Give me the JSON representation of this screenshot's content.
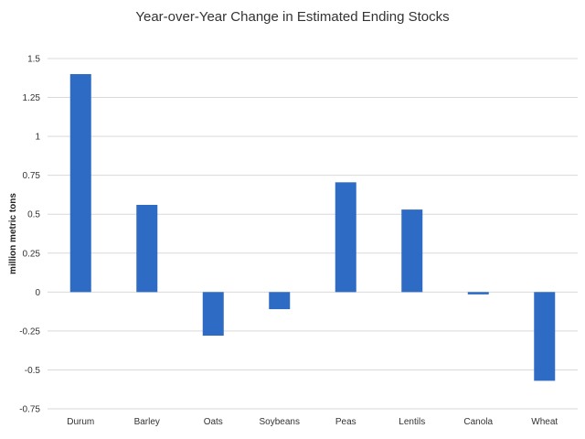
{
  "chart_data": {
    "type": "bar",
    "title": "Year-over-Year Change in Estimated Ending Stocks",
    "xlabel": "",
    "ylabel": "million metric tons",
    "categories": [
      "Durum",
      "Barley",
      "Oats",
      "Soybeans",
      "Peas",
      "Lentils",
      "Canola",
      "Wheat"
    ],
    "values": [
      1.4,
      0.56,
      -0.28,
      -0.11,
      0.705,
      0.53,
      -0.015,
      -0.57
    ],
    "ylim": [
      -0.75,
      1.5
    ],
    "yticks": [
      -0.75,
      -0.5,
      -0.25,
      0,
      0.25,
      0.5,
      0.75,
      1,
      1.25,
      1.5
    ],
    "ytick_labels": [
      "-0.75",
      "-0.5",
      "-0.25",
      "0",
      "0.25",
      "0.5",
      "0.75",
      "1",
      "1.25",
      "1.5"
    ],
    "grid": true,
    "bar_color": "#2e6bc4",
    "grid_color": "#d9d9d9"
  }
}
